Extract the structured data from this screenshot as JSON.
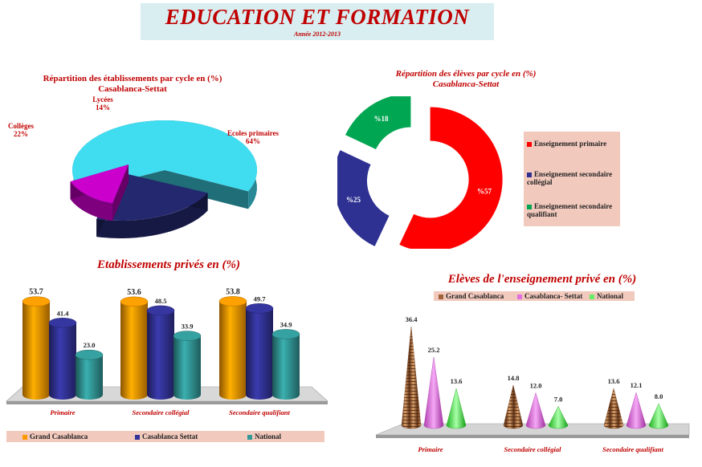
{
  "header": {
    "title": "EDUCATION ET FORMATION",
    "subtitle": "Année 2012-2013"
  },
  "colors": {
    "grand_casablanca": "#ff9900",
    "casablanca_settat": "#333399",
    "national": "#339999",
    "primaire_donut": "#ff0000",
    "college_donut": "#2e3192",
    "qualifiant_donut": "#00a651",
    "pie_ecoles": "#40dcf0",
    "pie_colleges": "#24286e",
    "pie_lycees": "#cc00cc",
    "title_red": "#c00000"
  },
  "chart_data": [
    {
      "type": "pie",
      "title": "Répartition des établissements par cycle en (%)",
      "subtitle": "Casablanca-Settat",
      "slices": [
        {
          "label": "Ecoles primaires",
          "value": 64,
          "text": "64%"
        },
        {
          "label": "Collèges",
          "value": 22,
          "text": "22%"
        },
        {
          "label": "Lycées",
          "value": 14,
          "text": "14%"
        }
      ]
    },
    {
      "type": "pie",
      "title": "Répartition des élèves par cycle en (%)",
      "subtitle": "Casablanca-Settat",
      "slices": [
        {
          "label": "Enseignement primaire",
          "value": 57,
          "text": "%57"
        },
        {
          "label": "Enseignement secondaire collégial",
          "value": 25,
          "text": "%25"
        },
        {
          "label": "Enseignement secondaire qualifiant",
          "value": 18,
          "text": "%18"
        }
      ],
      "legend": [
        "Enseignement primaire",
        "Enseignement secondaire collégial",
        "Enseignement secondaire qualifiant"
      ],
      "legend_position": "right"
    },
    {
      "type": "bar",
      "title": "Etablissements privés en (%)",
      "categories": [
        "Primaire",
        "Secondaire collégial",
        "Secondaire qualifiant"
      ],
      "series": [
        {
          "name": "Grand Casablanca",
          "values": [
            53.7,
            53.6,
            53.8
          ],
          "labels": [
            "53.7",
            "53.6",
            "53.8"
          ]
        },
        {
          "name": "Casablanca  Settat",
          "values": [
            41.4,
            48.5,
            49.7
          ],
          "labels": [
            "41.4",
            "48.5",
            "49.7"
          ]
        },
        {
          "name": "National",
          "values": [
            23.0,
            33.9,
            34.9
          ],
          "labels": [
            "23.0",
            "33.9",
            "34.9"
          ]
        }
      ],
      "ylim": [
        0,
        60
      ],
      "grid": false,
      "legend_position": "bottom"
    },
    {
      "type": "bar",
      "title": "Elèves de l'enseignement privé en (%)",
      "categories": [
        "Primaire",
        "Secondaire collégial",
        "Secondaire qualifiant"
      ],
      "series": [
        {
          "name": "Grand Casablanca",
          "values": [
            36.4,
            14.8,
            13.6
          ],
          "labels": [
            "36.4",
            "14.8",
            "13.6"
          ]
        },
        {
          "name": "Casablanca- Settat",
          "values": [
            25.2,
            12.0,
            12.1
          ],
          "labels": [
            "25.2",
            "12.0",
            "12.1"
          ]
        },
        {
          "name": "National",
          "values": [
            13.6,
            7.0,
            8.0
          ],
          "labels": [
            "13.6",
            "7.0",
            "8.0"
          ]
        }
      ],
      "ylim": [
        0,
        40
      ],
      "grid": false,
      "legend_position": "top"
    }
  ]
}
